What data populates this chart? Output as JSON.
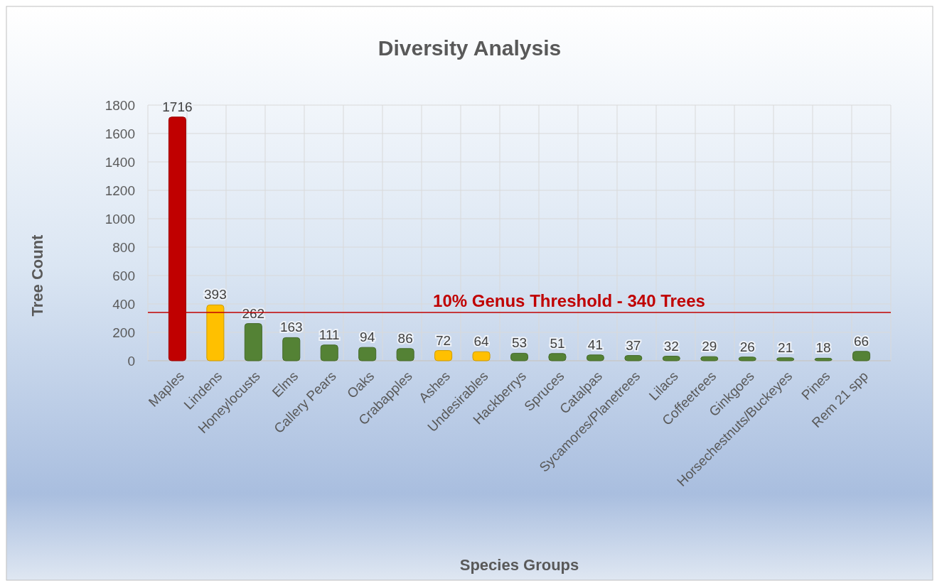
{
  "chart_data": {
    "type": "bar",
    "title": "Diversity Analysis",
    "xlabel": "Species Groups",
    "ylabel": "Tree Count",
    "categories": [
      "Maples",
      "Lindens",
      "Honeylocusts",
      "Elms",
      "Callery Pears",
      "Oaks",
      "Crabapples",
      "Ashes",
      "Undesirables",
      "Hackberrys",
      "Spruces",
      "Catalpas",
      "Sycamores/Planetrees",
      "Lilacs",
      "Coffeetrees",
      "Ginkgoes",
      "Horsechestnuts/Buckeyes",
      "Pines",
      "Rem 21 spp"
    ],
    "values": [
      1716,
      393,
      262,
      163,
      111,
      94,
      86,
      72,
      64,
      53,
      51,
      41,
      37,
      32,
      29,
      26,
      21,
      18,
      66
    ],
    "colors": [
      "#c00000",
      "#ffc000",
      "#548235",
      "#548235",
      "#548235",
      "#548235",
      "#548235",
      "#ffc000",
      "#ffc000",
      "#548235",
      "#548235",
      "#548235",
      "#548235",
      "#548235",
      "#548235",
      "#548235",
      "#548235",
      "#548235",
      "#548235"
    ],
    "ylim": [
      0,
      1800
    ],
    "yticks": [
      0,
      200,
      400,
      600,
      800,
      1000,
      1200,
      1400,
      1600,
      1800
    ],
    "grid": true,
    "data_labels": true,
    "ref_lines": [
      {
        "axis": "y",
        "value": 340,
        "label": "10% Genus Threshold - 340 Trees",
        "color": "#c00000"
      }
    ]
  }
}
